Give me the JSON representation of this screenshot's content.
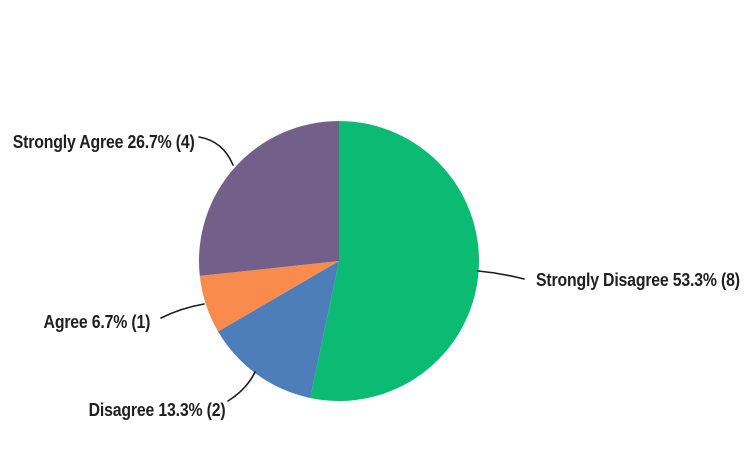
{
  "background_color": "#ffffff",
  "text_color": "#1f1f1f",
  "leader_line_color": "#1b1b1b",
  "chart_data": {
    "type": "pie",
    "title": "",
    "legend_position": "none",
    "labels_style": "outside-callout",
    "start_angle_deg_from_top": 0,
    "direction": "clockwise",
    "categories": [
      "Strongly Disagree",
      "Disagree",
      "Agree",
      "Strongly Agree"
    ],
    "values": [
      8,
      2,
      1,
      4
    ],
    "percents": [
      53.3,
      13.3,
      6.7,
      26.7
    ],
    "total_responses": 15,
    "slices": [
      {
        "id": "strongly-disagree",
        "category": "Strongly Disagree",
        "percent": 53.3,
        "count": 8,
        "color": "#0cbb73",
        "callout_text": "Strongly Disagree 53.3% (8)"
      },
      {
        "id": "disagree",
        "category": "Disagree",
        "percent": 13.3,
        "count": 2,
        "color": "#4e7eb9",
        "callout_text": "Disagree 13.3% (2)"
      },
      {
        "id": "agree",
        "category": "Agree",
        "percent": 6.7,
        "count": 1,
        "color": "#f98c4d",
        "callout_text": "Agree 6.7% (1)"
      },
      {
        "id": "strongly-agree",
        "category": "Strongly Agree",
        "percent": 26.7,
        "count": 4,
        "color": "#73608a",
        "callout_text": "Strongly Agree 26.7% (4)"
      }
    ]
  }
}
